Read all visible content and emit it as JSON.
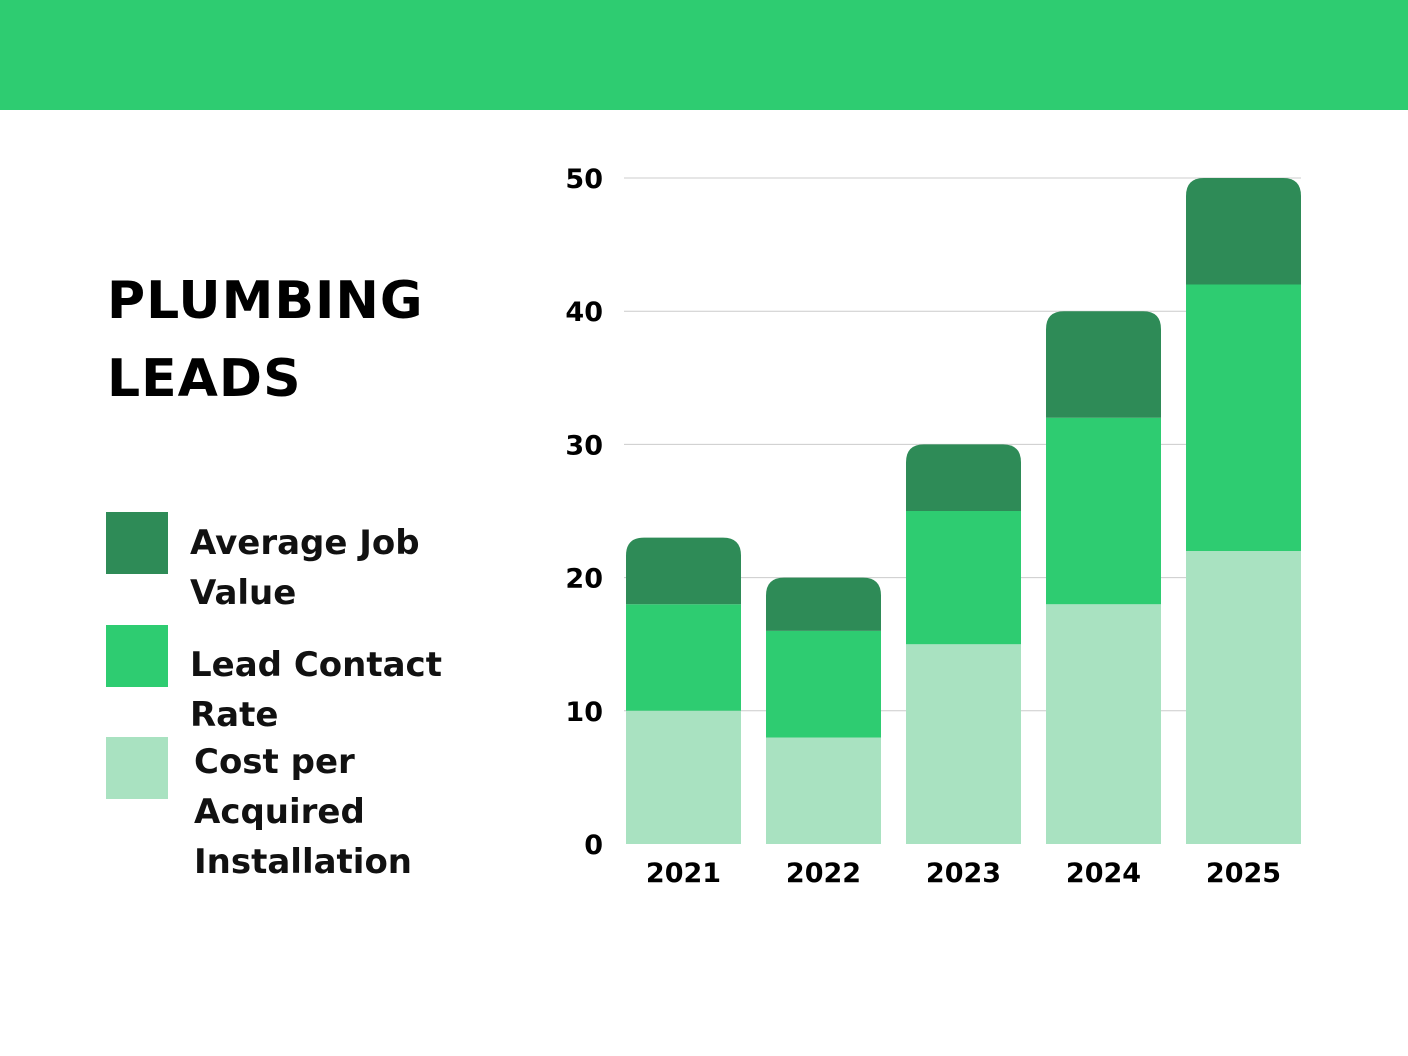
{
  "colors": {
    "header": "#2ECC71",
    "average_job_value": "#2E8B57",
    "lead_contact_rate": "#2ECC71",
    "cost_per_acquired_installation": "#A9E2C1",
    "grid": "#CCCCCC"
  },
  "chart_data": {
    "type": "bar",
    "stacked": true,
    "title": "PLUMBING LEADS",
    "categories": [
      "2021",
      "2022",
      "2023",
      "2024",
      "2025"
    ],
    "series": [
      {
        "name": "Cost per Acquired Installation",
        "values": [
          10,
          8,
          15,
          18,
          22
        ]
      },
      {
        "name": "Lead Contact Rate",
        "values": [
          8,
          8,
          10,
          14,
          20
        ]
      },
      {
        "name": "Average Job Value",
        "values": [
          5,
          4,
          5,
          8,
          8
        ]
      }
    ],
    "yticks": [
      0,
      10,
      20,
      30,
      40,
      50
    ],
    "ylim": [
      0,
      50
    ],
    "grid": true,
    "legend_placement": "left"
  }
}
